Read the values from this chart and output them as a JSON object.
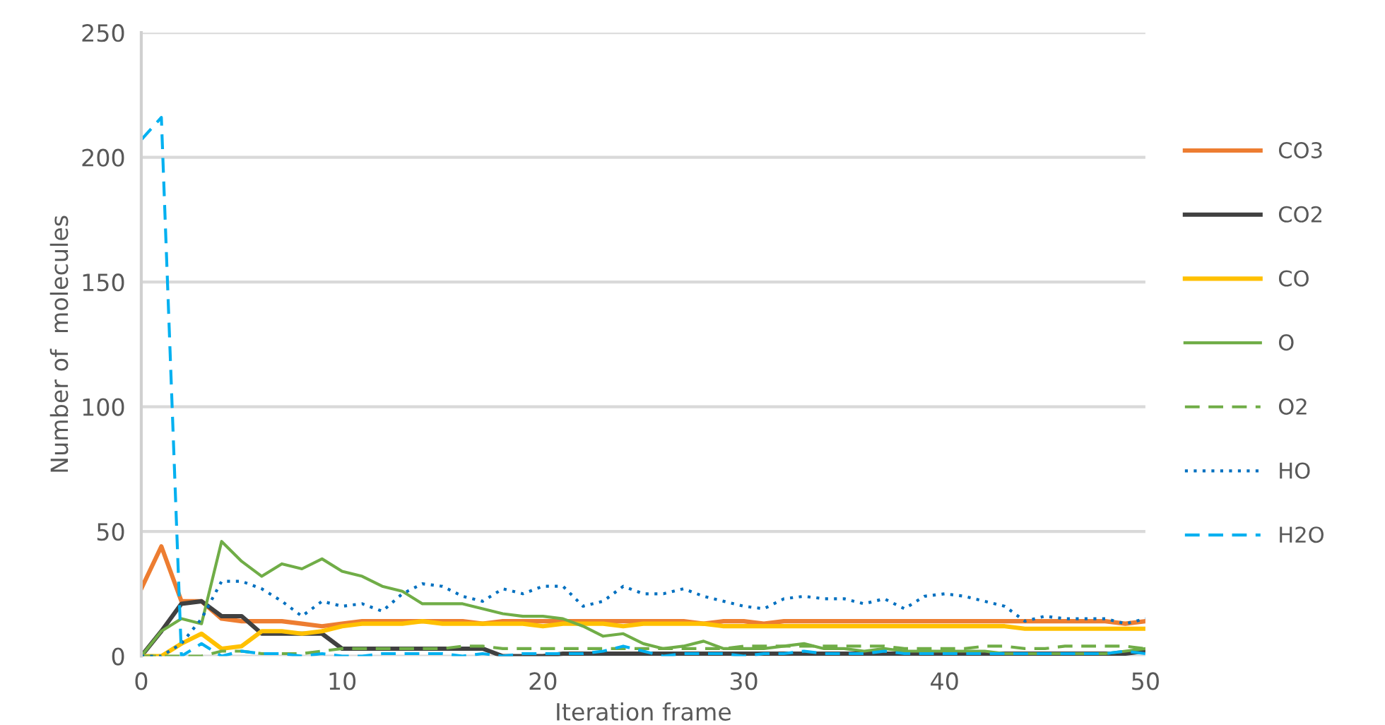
{
  "chart_data": {
    "type": "line",
    "xlabel": "Iteration frame",
    "ylabel": "Number of  molecules",
    "xlim": [
      0,
      50
    ],
    "ylim": [
      0,
      250
    ],
    "xticks": [
      0,
      10,
      20,
      30,
      40,
      50
    ],
    "yticks": [
      0,
      50,
      100,
      150,
      200,
      250
    ],
    "grid": "y",
    "legend": "right",
    "x": [
      0,
      1,
      2,
      3,
      4,
      5,
      6,
      7,
      8,
      9,
      10,
      11,
      12,
      13,
      14,
      15,
      16,
      17,
      18,
      19,
      20,
      21,
      22,
      23,
      24,
      25,
      26,
      27,
      28,
      29,
      30,
      31,
      32,
      33,
      34,
      35,
      36,
      37,
      38,
      39,
      40,
      41,
      42,
      43,
      44,
      45,
      46,
      47,
      48,
      49,
      50
    ],
    "series": [
      {
        "name": "CO3",
        "color": "#ed7d31",
        "line_style": "solid",
        "values": [
          27,
          44,
          22,
          22,
          15,
          14,
          14,
          14,
          13,
          12,
          13,
          14,
          14,
          14,
          14,
          14,
          14,
          13,
          14,
          14,
          14,
          14,
          14,
          14,
          14,
          14,
          14,
          14,
          13,
          14,
          14,
          13,
          14,
          14,
          14,
          14,
          14,
          14,
          14,
          14,
          14,
          14,
          14,
          14,
          14,
          14,
          14,
          14,
          14,
          13,
          14
        ]
      },
      {
        "name": "CO2",
        "color": "#404040",
        "line_style": "solid",
        "values": [
          0,
          10,
          21,
          22,
          16,
          16,
          9,
          9,
          9,
          9,
          3,
          3,
          3,
          3,
          3,
          3,
          3,
          3,
          0,
          0,
          0,
          1,
          1,
          1,
          1,
          1,
          1,
          1,
          1,
          1,
          1,
          1,
          1,
          1,
          1,
          1,
          1,
          1,
          1,
          1,
          1,
          1,
          1,
          1,
          1,
          1,
          1,
          1,
          1,
          1,
          2
        ]
      },
      {
        "name": "CO",
        "color": "#ffc000",
        "line_style": "solid",
        "values": [
          0,
          0,
          5,
          9,
          3,
          4,
          10,
          10,
          9,
          10,
          12,
          13,
          13,
          13,
          14,
          13,
          13,
          13,
          13,
          13,
          12,
          13,
          13,
          13,
          12,
          13,
          13,
          13,
          13,
          12,
          12,
          12,
          12,
          12,
          12,
          12,
          12,
          12,
          12,
          12,
          12,
          12,
          12,
          12,
          11,
          11,
          11,
          11,
          11,
          11,
          11
        ]
      },
      {
        "name": "O",
        "color": "#70ad47",
        "line_style": "solid",
        "values": [
          0,
          10,
          15,
          13,
          46,
          38,
          32,
          37,
          35,
          39,
          34,
          32,
          28,
          26,
          21,
          21,
          21,
          19,
          17,
          16,
          16,
          15,
          12,
          8,
          9,
          5,
          3,
          4,
          6,
          3,
          3,
          3,
          4,
          5,
          3,
          3,
          2,
          3,
          2,
          2,
          2,
          2,
          2,
          1,
          1,
          1,
          1,
          1,
          1,
          2,
          3
        ]
      },
      {
        "name": "O2",
        "color": "#70ad47",
        "line_style": "dashed",
        "values": [
          0,
          0,
          0,
          0,
          2,
          2,
          1,
          1,
          1,
          2,
          3,
          3,
          3,
          3,
          3,
          3,
          4,
          4,
          3,
          3,
          3,
          3,
          3,
          3,
          3,
          3,
          3,
          3,
          3,
          3,
          4,
          4,
          4,
          4,
          4,
          4,
          4,
          4,
          3,
          3,
          3,
          3,
          4,
          4,
          3,
          3,
          4,
          4,
          4,
          4,
          3
        ]
      },
      {
        "name": "HO",
        "color": "#0070c0",
        "line_style": "dotted",
        "values": [
          0,
          0,
          5,
          15,
          30,
          30,
          27,
          22,
          16,
          22,
          20,
          21,
          18,
          25,
          29,
          28,
          24,
          22,
          27,
          25,
          28,
          28,
          20,
          22,
          28,
          25,
          25,
          27,
          24,
          22,
          20,
          19,
          23,
          24,
          23,
          23,
          21,
          23,
          19,
          24,
          25,
          24,
          22,
          20,
          14,
          16,
          15,
          15,
          15,
          13,
          15
        ]
      },
      {
        "name": "H2O",
        "color": "#00b0f0",
        "line_style": "dashed",
        "values": [
          207,
          216,
          0,
          5,
          0,
          2,
          1,
          1,
          0,
          1,
          0,
          0,
          1,
          1,
          1,
          1,
          0,
          1,
          0,
          1,
          1,
          1,
          1,
          2,
          4,
          2,
          0,
          1,
          1,
          1,
          0,
          1,
          1,
          2,
          1,
          1,
          1,
          2,
          1,
          1,
          1,
          1,
          1,
          1,
          1,
          1,
          1,
          1,
          1,
          2,
          1
        ]
      }
    ]
  }
}
